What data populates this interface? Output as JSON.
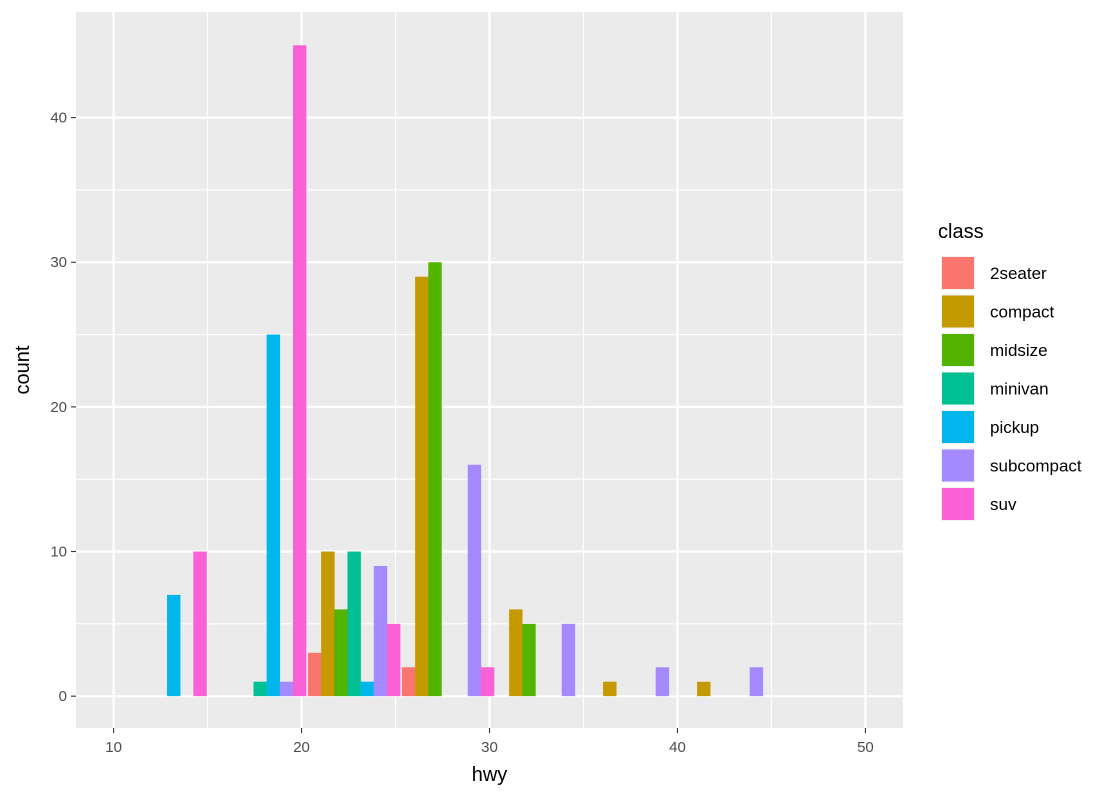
{
  "chart_data": {
    "type": "bar",
    "xlabel": "hwy",
    "ylabel": "count",
    "xlim": [
      8,
      52
    ],
    "ylim": [
      -2.2,
      47.3
    ],
    "x_ticks": [
      10,
      20,
      30,
      40,
      50
    ],
    "y_ticks": [
      0,
      10,
      20,
      30,
      40
    ],
    "grid": true,
    "legend_title": "class",
    "legend_position": "right",
    "bin_centers": [
      10,
      15,
      20,
      25,
      30,
      35,
      40,
      45,
      50
    ],
    "series": [
      {
        "name": "2seater",
        "color": "#F8766D",
        "bars": [
          {
            "x": 20.7,
            "y": 3
          },
          {
            "x": 25.7,
            "y": 2
          }
        ]
      },
      {
        "name": "compact",
        "color": "#C49A00",
        "bars": [
          {
            "x": 21.4,
            "y": 10
          },
          {
            "x": 26.4,
            "y": 29
          },
          {
            "x": 31.4,
            "y": 6
          },
          {
            "x": 36.4,
            "y": 1
          },
          {
            "x": 41.4,
            "y": 1
          }
        ]
      },
      {
        "name": "midsize",
        "color": "#53B400",
        "bars": [
          {
            "x": 22.1,
            "y": 6
          },
          {
            "x": 27.1,
            "y": 30
          },
          {
            "x": 32.1,
            "y": 5
          }
        ]
      },
      {
        "name": "minivan",
        "color": "#00C094",
        "bars": [
          {
            "x": 17.8,
            "y": 1
          },
          {
            "x": 22.8,
            "y": 10
          }
        ]
      },
      {
        "name": "pickup",
        "color": "#00B6EB",
        "bars": [
          {
            "x": 13.2,
            "y": 7
          },
          {
            "x": 18.5,
            "y": 25
          },
          {
            "x": 23.5,
            "y": 1
          }
        ]
      },
      {
        "name": "subcompact",
        "color": "#A58AFF",
        "bars": [
          {
            "x": 19.2,
            "y": 1
          },
          {
            "x": 24.2,
            "y": 9
          },
          {
            "x": 29.2,
            "y": 16
          },
          {
            "x": 34.2,
            "y": 5
          },
          {
            "x": 39.2,
            "y": 2
          },
          {
            "x": 44.2,
            "y": 2
          }
        ]
      },
      {
        "name": "suv",
        "color": "#FB61D7",
        "bars": [
          {
            "x": 14.6,
            "y": 10
          },
          {
            "x": 19.9,
            "y": 45
          },
          {
            "x": 24.9,
            "y": 5
          },
          {
            "x": 29.9,
            "y": 2
          }
        ]
      }
    ]
  }
}
